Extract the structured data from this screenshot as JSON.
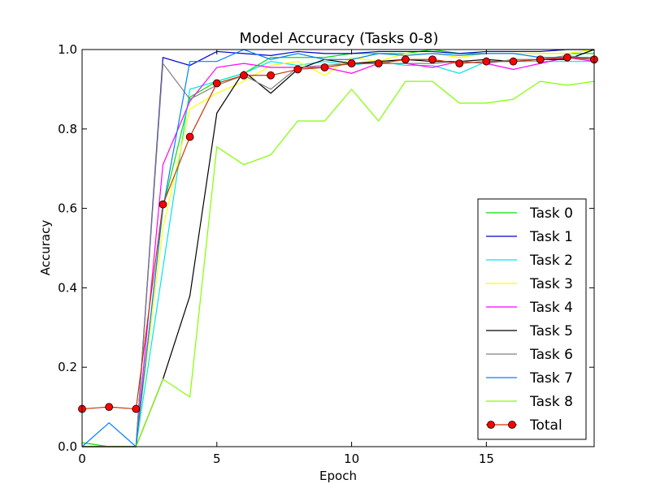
{
  "chart_data": {
    "type": "line",
    "title": "Model Accuracy (Tasks 0-8)",
    "xlabel": "Epoch",
    "ylabel": "Accuracy",
    "xlim": [
      0,
      19
    ],
    "ylim": [
      0.0,
      1.0
    ],
    "xticks": [
      0,
      5,
      10,
      15
    ],
    "yticks": [
      0.0,
      0.2,
      0.4,
      0.6,
      0.8,
      1.0
    ],
    "xtick_labels": [
      "0",
      "5",
      "10",
      "15"
    ],
    "ytick_labels": [
      "0.0",
      "0.2",
      "0.4",
      "0.6",
      "0.8",
      "1.0"
    ],
    "grid": false,
    "legend_position": "lower-right",
    "x": [
      0,
      1,
      2,
      3,
      4,
      5,
      6,
      7,
      8,
      9,
      10,
      11,
      12,
      13,
      14,
      15,
      16,
      17,
      18,
      19
    ],
    "series": [
      {
        "name": "Task 0",
        "color": "#00e000",
        "marker": false,
        "values": [
          0.01,
          0.0,
          0.0,
          0.6,
          0.88,
          0.92,
          0.94,
          0.98,
          0.98,
          0.98,
          0.99,
          0.99,
          0.99,
          1.0,
          0.99,
          0.99,
          0.99,
          0.99,
          0.99,
          0.99
        ]
      },
      {
        "name": "Task 1",
        "color": "#0000cc",
        "marker": false,
        "values": [
          0.0,
          0.0,
          0.0,
          0.98,
          0.96,
          0.995,
          0.99,
          0.985,
          0.995,
          0.99,
          0.99,
          0.995,
          0.995,
          0.995,
          0.99,
          0.995,
          0.995,
          0.995,
          1.0,
          1.0
        ]
      },
      {
        "name": "Task 2",
        "color": "#00e6e6",
        "marker": false,
        "values": [
          0.0,
          0.0,
          0.0,
          0.45,
          0.9,
          0.92,
          0.94,
          0.97,
          0.96,
          0.97,
          0.96,
          0.97,
          0.96,
          0.96,
          0.94,
          0.97,
          0.97,
          0.97,
          0.97,
          0.97
        ]
      },
      {
        "name": "Task 3",
        "color": "#ffff00",
        "marker": false,
        "values": [
          0.0,
          0.0,
          0.0,
          0.55,
          0.85,
          0.89,
          0.92,
          0.96,
          0.97,
          0.935,
          0.98,
          0.97,
          0.99,
          0.99,
          0.98,
          0.99,
          0.99,
          0.99,
          0.99,
          1.0
        ]
      },
      {
        "name": "Task 4",
        "color": "#ff00ff",
        "marker": false,
        "values": [
          0.0,
          0.0,
          0.0,
          0.71,
          0.87,
          0.955,
          0.965,
          0.955,
          0.955,
          0.955,
          0.94,
          0.965,
          0.965,
          0.955,
          0.97,
          0.965,
          0.95,
          0.965,
          0.98,
          0.97
        ]
      },
      {
        "name": "Task 5",
        "color": "#000000",
        "marker": false,
        "values": [
          0.0,
          0.0,
          0.0,
          0.17,
          0.38,
          0.84,
          0.945,
          0.89,
          0.95,
          0.975,
          0.965,
          0.97,
          0.975,
          0.97,
          0.97,
          0.975,
          0.97,
          0.975,
          0.975,
          1.0
        ]
      },
      {
        "name": "Task 6",
        "color": "#808080",
        "marker": false,
        "values": [
          0.0,
          0.0,
          0.0,
          0.965,
          0.875,
          0.91,
          0.935,
          0.9,
          0.955,
          0.96,
          0.965,
          0.965,
          0.965,
          0.965,
          0.97,
          0.965,
          0.975,
          0.975,
          0.985,
          0.975
        ]
      },
      {
        "name": "Task 7",
        "color": "#0080ff",
        "marker": false,
        "values": [
          0.0,
          0.06,
          0.0,
          0.6,
          0.97,
          0.97,
          1.0,
          0.975,
          0.99,
          0.975,
          0.975,
          0.99,
          0.985,
          0.99,
          0.985,
          0.99,
          0.99,
          0.98,
          0.98,
          0.98
        ]
      },
      {
        "name": "Task 8",
        "color": "#80ff00",
        "marker": false,
        "values": [
          0.0,
          0.0,
          0.0,
          0.17,
          0.125,
          0.755,
          0.71,
          0.735,
          0.82,
          0.82,
          0.9,
          0.82,
          0.92,
          0.92,
          0.865,
          0.865,
          0.875,
          0.92,
          0.91,
          0.92
        ]
      },
      {
        "name": "Total",
        "color": "#cc3300",
        "marker": true,
        "marker_color": "#ff0000",
        "values": [
          0.095,
          0.1,
          0.095,
          0.61,
          0.78,
          0.915,
          0.935,
          0.935,
          0.95,
          0.955,
          0.965,
          0.965,
          0.975,
          0.975,
          0.965,
          0.97,
          0.97,
          0.975,
          0.98,
          0.975
        ]
      }
    ]
  }
}
